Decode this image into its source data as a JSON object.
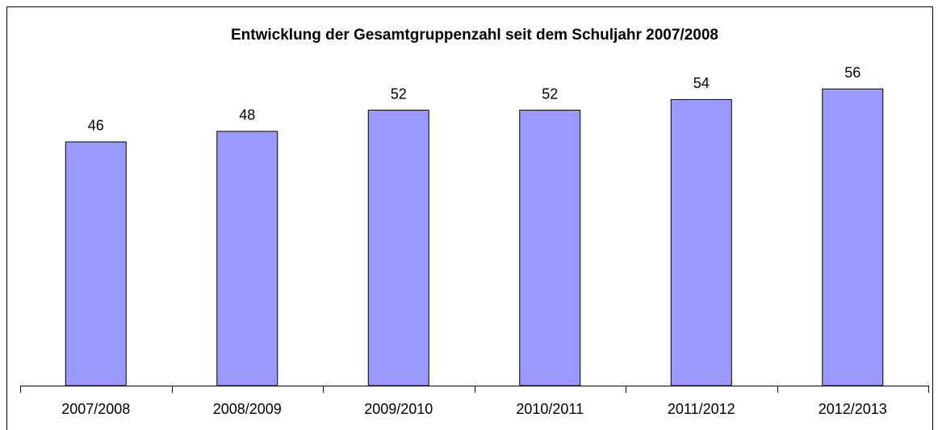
{
  "chart_data": {
    "type": "bar",
    "title": "Entwicklung der Gesamtgruppenzahl seit dem Schuljahr 2007/2008",
    "categories": [
      "2007/2008",
      "2008/2009",
      "2009/2010",
      "2010/2011",
      "2011/2012",
      "2012/2013"
    ],
    "values": [
      46,
      48,
      52,
      52,
      54,
      56
    ],
    "color": "#9999ff",
    "ylim": [
      0,
      60
    ]
  }
}
